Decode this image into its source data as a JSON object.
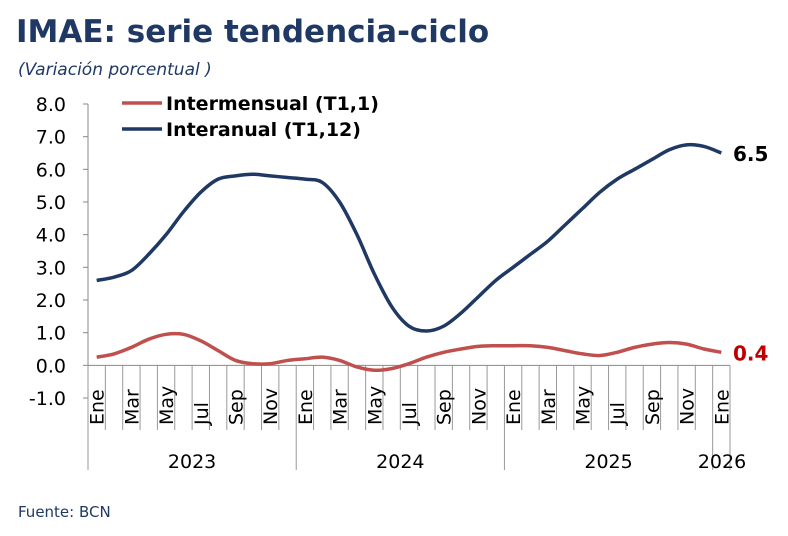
{
  "title": "IMAE: serie tendencia-ciclo",
  "subtitle": "(Variación porcentual )",
  "source": "Fuente: BCN",
  "colors": {
    "intermensual": "#c0504d",
    "interanual": "#1f3864",
    "end_label_red": "#c00000"
  },
  "chart_data": {
    "type": "line",
    "title": "IMAE: serie tendencia-ciclo",
    "ylabel": "",
    "ylim": [
      -1,
      8
    ],
    "yticks": [
      "8.0",
      "7.0",
      "6.0",
      "5.0",
      "4.0",
      "3.0",
      "2.0",
      "1.0",
      "0.0",
      "-1.0"
    ],
    "ytick_values": [
      8,
      7,
      6,
      5,
      4,
      3,
      2,
      1,
      0,
      -1
    ],
    "month_labels": [
      "Ene",
      "Mar",
      "May",
      "Jul",
      "Sep",
      "Nov",
      "Ene",
      "Mar",
      "May",
      "Jul",
      "Sep",
      "Nov",
      "Ene",
      "Mar",
      "May",
      "Jul",
      "Sep",
      "Nov",
      "Ene"
    ],
    "years": [
      "2023",
      "2024",
      "2025",
      "2026"
    ],
    "x_count": 37,
    "legend_placement": "top-left",
    "series": [
      {
        "name": "Intermensual (T1,1)",
        "end_label": "0.4",
        "values": [
          0.25,
          0.35,
          0.55,
          0.8,
          0.95,
          0.95,
          0.75,
          0.45,
          0.15,
          0.05,
          0.05,
          0.15,
          0.2,
          0.25,
          0.15,
          -0.05,
          -0.15,
          -0.1,
          0.05,
          0.25,
          0.4,
          0.5,
          0.58,
          0.6,
          0.6,
          0.6,
          0.55,
          0.45,
          0.35,
          0.3,
          0.4,
          0.55,
          0.65,
          0.7,
          0.65,
          0.5,
          0.4
        ]
      },
      {
        "name": "Interanual (T1,12)",
        "end_label": "6.5",
        "values": [
          2.6,
          2.7,
          2.9,
          3.4,
          4.0,
          4.7,
          5.3,
          5.7,
          5.8,
          5.85,
          5.8,
          5.75,
          5.7,
          5.6,
          5.0,
          4.0,
          2.8,
          1.8,
          1.2,
          1.05,
          1.2,
          1.6,
          2.1,
          2.6,
          3.0,
          3.4,
          3.8,
          4.3,
          4.8,
          5.3,
          5.7,
          6.0,
          6.3,
          6.6,
          6.75,
          6.7,
          6.5
        ]
      }
    ]
  }
}
